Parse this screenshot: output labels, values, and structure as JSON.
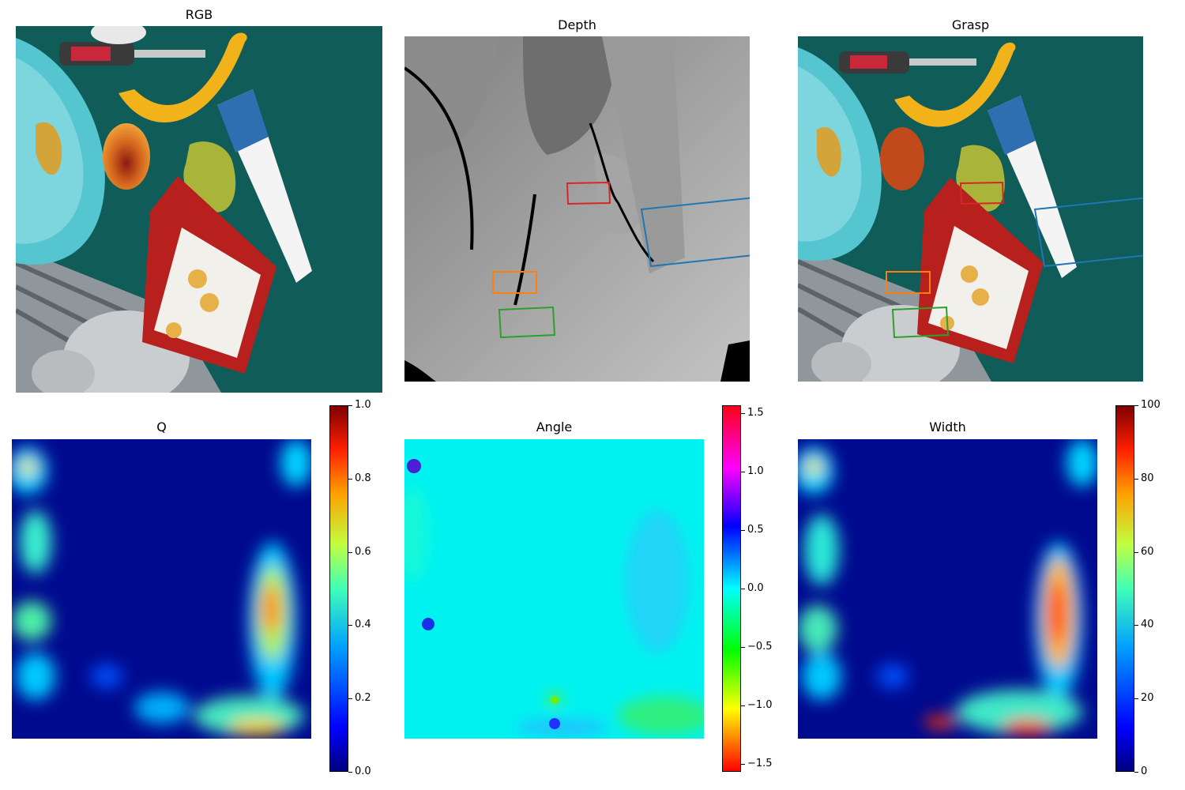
{
  "chart_data": [
    {
      "type": "heatmap",
      "title": "RGB",
      "image": "rgb-scene",
      "objects": [
        "bowl",
        "screwdriver",
        "banana",
        "peach",
        "pear",
        "toothpaste-tube",
        "cracker-box",
        "robot-arm"
      ]
    },
    {
      "type": "heatmap",
      "title": "Depth",
      "image": "depth-map",
      "grasp_boxes": [
        "red",
        "blue",
        "orange",
        "green"
      ]
    },
    {
      "type": "heatmap",
      "title": "Grasp",
      "image": "rgb-scene-with-grasps",
      "grasp_boxes": [
        "red",
        "blue",
        "orange",
        "green"
      ]
    },
    {
      "type": "heatmap",
      "title": "Q",
      "colormap": "jet",
      "clim": [
        0,
        1
      ],
      "colorbar_ticks": [
        "0.0",
        "0.2",
        "0.4",
        "0.6",
        "0.8",
        "1.0"
      ],
      "tick_values": [
        0,
        0.2,
        0.4,
        0.6,
        0.8,
        1.0
      ]
    },
    {
      "type": "heatmap",
      "title": "Angle",
      "colormap": "hsv",
      "clim": [
        -1.5708,
        1.5708
      ],
      "colorbar_ticks": [
        "−1.5",
        "−1.0",
        "−0.5",
        "0.0",
        "0.5",
        "1.0",
        "1.5"
      ],
      "tick_values": [
        -1.5,
        -1.0,
        -0.5,
        0,
        0.5,
        1.0,
        1.5
      ]
    },
    {
      "type": "heatmap",
      "title": "Width",
      "colormap": "jet",
      "clim": [
        0,
        100
      ],
      "colorbar_ticks": [
        "0",
        "20",
        "40",
        "60",
        "80",
        "100"
      ],
      "tick_values": [
        0,
        20,
        40,
        60,
        80,
        100
      ]
    }
  ],
  "colors": {
    "red": "#d62728",
    "blue": "#1f77b4",
    "orange": "#ff7f0e",
    "green": "#2ca02c",
    "table": "#0f5c58",
    "bowl": "#55c5cf"
  }
}
